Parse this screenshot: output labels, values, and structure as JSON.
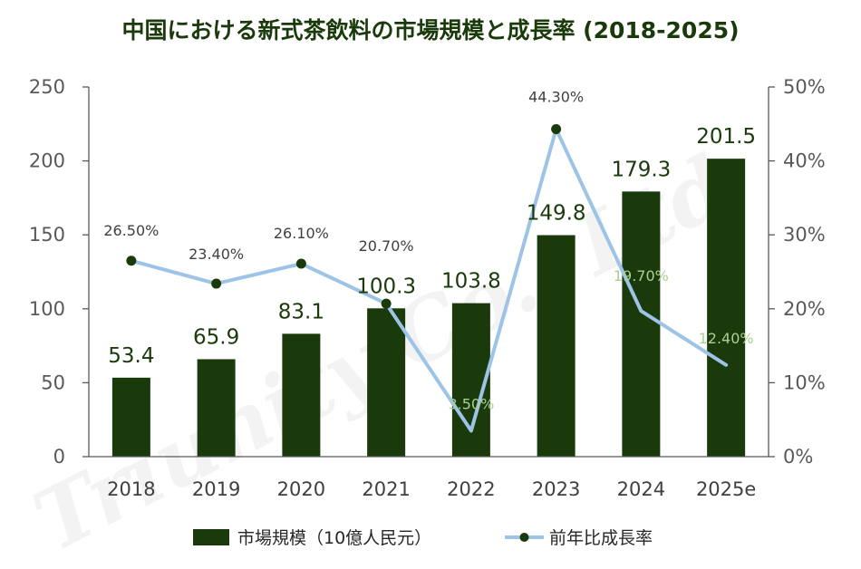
{
  "watermark": "Triunity Co., Ltd",
  "chart_data": {
    "type": "bar",
    "title": "中国における新式茶飲料の市場規模と成長率 (2018-2025)",
    "categories": [
      "2018",
      "2019",
      "2020",
      "2021",
      "2022",
      "2023",
      "2024",
      "2025e"
    ],
    "series": [
      {
        "name": "市場規模（10億人民元）",
        "type": "bar",
        "axis": "left",
        "color": "#1a3a0c",
        "values": [
          53.4,
          65.9,
          83.1,
          100.3,
          103.8,
          149.8,
          179.3,
          201.5
        ],
        "labels": [
          "53.4",
          "65.9",
          "83.1",
          "100.3",
          "103.8",
          "149.8",
          "179.3",
          "201.5"
        ]
      },
      {
        "name": "前年比成長率",
        "type": "line",
        "axis": "right",
        "color": "#9dc3e6",
        "marker_color": "#1a3a0c",
        "values": [
          26.5,
          23.4,
          26.1,
          20.7,
          3.5,
          44.3,
          19.7,
          12.4
        ],
        "labels": [
          "26.50%",
          "23.40%",
          "26.10%",
          "20.70%",
          "3.50%",
          "44.30%",
          "19.70%",
          "12.40%"
        ],
        "markers": [
          true,
          true,
          true,
          true,
          false,
          true,
          false,
          false
        ]
      }
    ],
    "ylim_left": [
      0,
      250
    ],
    "yticks_left": [
      "0",
      "50",
      "100",
      "150",
      "200",
      "250"
    ],
    "ylim_right": [
      0,
      50
    ],
    "yticks_right": [
      "0%",
      "10%",
      "20%",
      "30%",
      "40%",
      "50%"
    ],
    "grid": false,
    "legend_position": "bottom"
  }
}
